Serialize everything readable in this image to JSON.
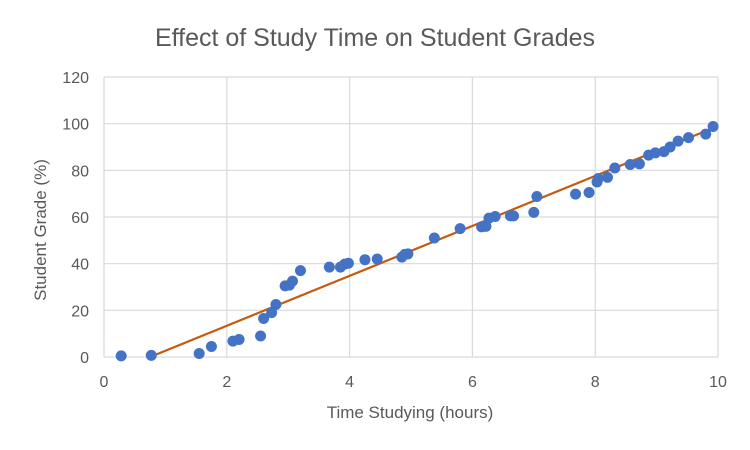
{
  "chart_data": {
    "type": "scatter",
    "title": "Effect of Study Time on Student Grades",
    "xlabel": "Time Studying (hours)",
    "ylabel": "Student Grade (%)",
    "xlim": [
      0,
      10
    ],
    "ylim": [
      0,
      120
    ],
    "x_ticks": [
      0,
      2,
      4,
      6,
      8,
      10
    ],
    "y_ticks": [
      0,
      20,
      40,
      60,
      80,
      100,
      120
    ],
    "grid": true,
    "legend": "none",
    "colors": {
      "points": "#4472C4",
      "trendline": "#C55A11",
      "grid": "#D9D9D9",
      "text": "#595959"
    },
    "series": [
      {
        "points": [
          [
            0.28,
            0.5
          ],
          [
            0.77,
            0.7
          ],
          [
            1.55,
            1.5
          ],
          [
            1.75,
            4.5
          ],
          [
            2.1,
            6.8
          ],
          [
            2.2,
            7.5
          ],
          [
            2.55,
            9.0
          ],
          [
            2.6,
            16.5
          ],
          [
            2.73,
            19.0
          ],
          [
            2.8,
            22.5
          ],
          [
            2.95,
            30.5
          ],
          [
            3.02,
            30.8
          ],
          [
            3.07,
            32.5
          ],
          [
            3.2,
            37.0
          ],
          [
            3.67,
            38.5
          ],
          [
            3.85,
            38.5
          ],
          [
            3.92,
            39.8
          ],
          [
            3.98,
            40.2
          ],
          [
            4.25,
            41.7
          ],
          [
            4.45,
            42.0
          ],
          [
            4.85,
            42.8
          ],
          [
            4.9,
            44.0
          ],
          [
            4.95,
            44.2
          ],
          [
            5.38,
            51.0
          ],
          [
            5.8,
            55.0
          ],
          [
            6.15,
            55.8
          ],
          [
            6.22,
            56.0
          ],
          [
            6.27,
            59.5
          ],
          [
            6.37,
            60.2
          ],
          [
            6.62,
            60.5
          ],
          [
            6.67,
            60.5
          ],
          [
            7.0,
            62.0
          ],
          [
            7.05,
            68.8
          ],
          [
            7.68,
            69.8
          ],
          [
            7.9,
            70.5
          ],
          [
            8.03,
            75.0
          ],
          [
            8.05,
            76.5
          ],
          [
            8.2,
            77.0
          ],
          [
            8.32,
            81.0
          ],
          [
            8.57,
            82.5
          ],
          [
            8.72,
            82.8
          ],
          [
            8.87,
            86.5
          ],
          [
            8.98,
            87.5
          ],
          [
            9.12,
            88.0
          ],
          [
            9.22,
            90.0
          ],
          [
            9.35,
            92.5
          ],
          [
            9.52,
            94.0
          ],
          [
            9.8,
            95.5
          ],
          [
            9.92,
            98.8
          ]
        ]
      }
    ],
    "trendline": {
      "type": "linear",
      "start": [
        0.75,
        0
      ],
      "end": [
        10,
        99
      ]
    }
  }
}
